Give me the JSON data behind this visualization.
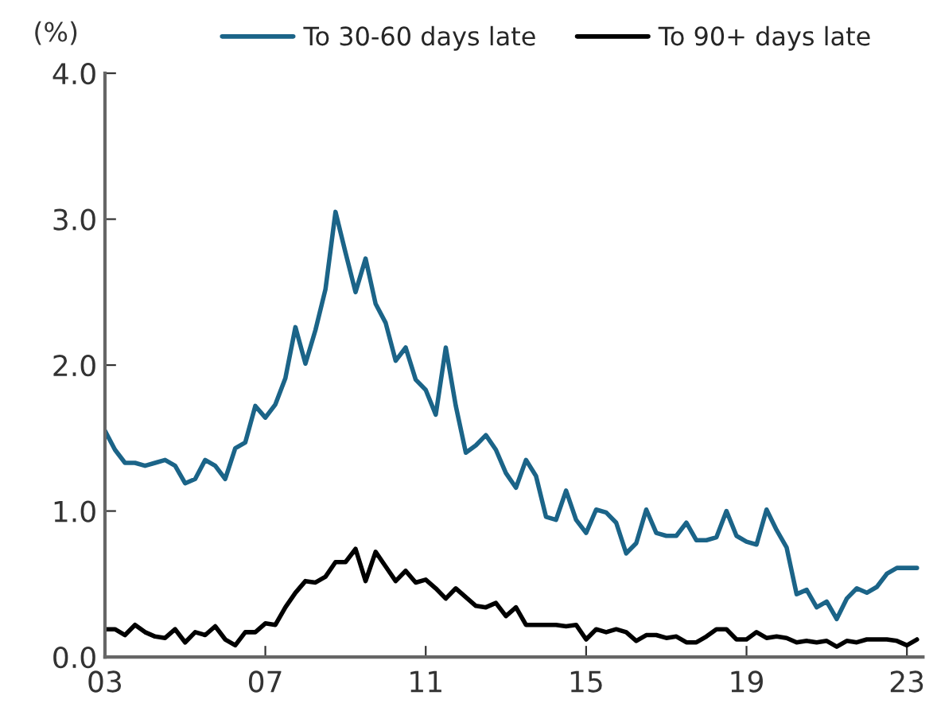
{
  "chart_data": {
    "type": "line",
    "ylabel": "(%)",
    "x": [
      2003,
      2003.25,
      2003.5,
      2003.75,
      2004,
      2004.25,
      2004.5,
      2004.75,
      2005,
      2005.25,
      2005.5,
      2005.75,
      2006,
      2006.25,
      2006.5,
      2006.75,
      2007,
      2007.25,
      2007.5,
      2007.75,
      2008,
      2008.25,
      2008.5,
      2008.75,
      2009,
      2009.25,
      2009.5,
      2009.75,
      2010,
      2010.25,
      2010.5,
      2010.75,
      2011,
      2011.25,
      2011.5,
      2011.75,
      2012,
      2012.25,
      2012.5,
      2012.75,
      2013,
      2013.25,
      2013.5,
      2013.75,
      2014,
      2014.25,
      2014.5,
      2014.75,
      2015,
      2015.25,
      2015.5,
      2015.75,
      2016,
      2016.25,
      2016.5,
      2016.75,
      2017,
      2017.25,
      2017.5,
      2017.75,
      2018,
      2018.25,
      2018.5,
      2018.75,
      2019,
      2019.25,
      2019.5,
      2019.75,
      2020,
      2020.25,
      2020.5,
      2020.75,
      2021,
      2021.25,
      2021.5,
      2021.75,
      2022,
      2022.25,
      2022.5,
      2022.75,
      2023,
      2023.25
    ],
    "series": [
      {
        "name": "To 30-60 days late",
        "color": "#1b6488",
        "values": [
          1.55,
          1.42,
          1.33,
          1.33,
          1.31,
          1.33,
          1.35,
          1.31,
          1.19,
          1.22,
          1.35,
          1.31,
          1.22,
          1.43,
          1.47,
          1.72,
          1.64,
          1.73,
          1.91,
          2.26,
          2.01,
          2.24,
          2.52,
          3.05,
          2.77,
          2.5,
          2.73,
          2.42,
          2.29,
          2.03,
          2.12,
          1.9,
          1.83,
          1.66,
          2.12,
          1.72,
          1.4,
          1.45,
          1.52,
          1.42,
          1.26,
          1.16,
          1.35,
          1.24,
          0.96,
          0.94,
          1.14,
          0.94,
          0.85,
          1.01,
          0.99,
          0.92,
          0.71,
          0.78,
          1.01,
          0.85,
          0.83,
          0.83,
          0.92,
          0.8,
          0.8,
          0.82,
          1.0,
          0.83,
          0.79,
          0.77,
          1.01,
          0.87,
          0.75,
          0.43,
          0.46,
          0.34,
          0.38,
          0.26,
          0.4,
          0.47,
          0.44,
          0.48,
          0.57,
          0.61,
          0.61,
          0.61
        ]
      },
      {
        "name": "To 90+ days late",
        "color": "#000000",
        "values": [
          0.19,
          0.19,
          0.15,
          0.22,
          0.17,
          0.14,
          0.13,
          0.19,
          0.1,
          0.17,
          0.15,
          0.21,
          0.12,
          0.08,
          0.17,
          0.17,
          0.23,
          0.22,
          0.34,
          0.44,
          0.52,
          0.51,
          0.55,
          0.65,
          0.65,
          0.74,
          0.52,
          0.72,
          0.62,
          0.52,
          0.59,
          0.51,
          0.53,
          0.47,
          0.4,
          0.47,
          0.41,
          0.35,
          0.34,
          0.37,
          0.28,
          0.34,
          0.22,
          0.22,
          0.22,
          0.22,
          0.21,
          0.22,
          0.12,
          0.19,
          0.17,
          0.19,
          0.17,
          0.11,
          0.15,
          0.15,
          0.13,
          0.14,
          0.1,
          0.1,
          0.14,
          0.19,
          0.19,
          0.12,
          0.12,
          0.17,
          0.13,
          0.14,
          0.13,
          0.1,
          0.11,
          0.1,
          0.11,
          0.07,
          0.11,
          0.1,
          0.12,
          0.12,
          0.12,
          0.11,
          0.08,
          0.12
        ]
      }
    ],
    "xlim": [
      2003,
      2023.4
    ],
    "xticks": [
      {
        "value": 2003,
        "label": "03"
      },
      {
        "value": 2007,
        "label": "07"
      },
      {
        "value": 2011,
        "label": "11"
      },
      {
        "value": 2015,
        "label": "15"
      },
      {
        "value": 2019,
        "label": "19"
      },
      {
        "value": 2023,
        "label": "23"
      }
    ],
    "ylim": [
      0,
      4
    ],
    "yticks": [
      {
        "value": 0,
        "label": "0.0"
      },
      {
        "value": 1,
        "label": "1.0"
      },
      {
        "value": 2,
        "label": "2.0"
      },
      {
        "value": 3,
        "label": "3.0"
      },
      {
        "value": 4,
        "label": "4.0"
      }
    ],
    "legend": "top",
    "grid": false,
    "line_style": "solid",
    "marker": "none"
  }
}
